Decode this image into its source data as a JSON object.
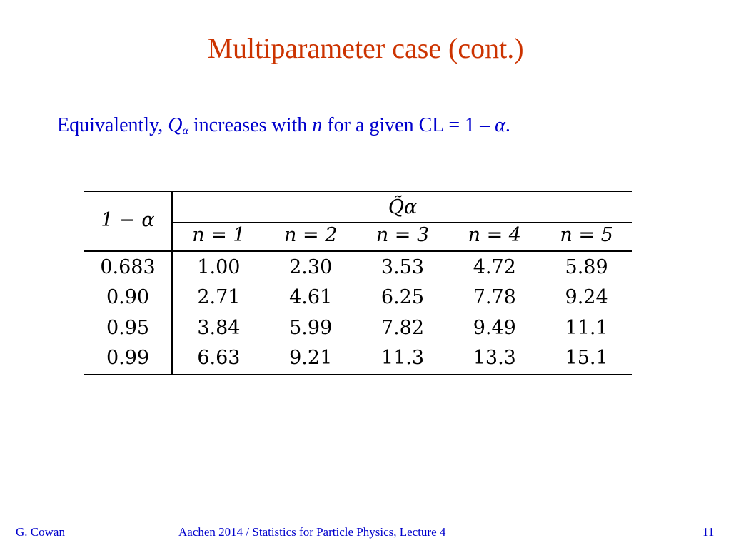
{
  "slide": {
    "title": "Multiparameter case (cont.)",
    "subtitle": {
      "part1": "Equivalently, ",
      "q_symbol": "Q",
      "q_subscript": "α",
      "part2": " increases with ",
      "n_symbol": "n",
      "part3": " for a given CL = 1 – ",
      "alpha_symbol": "α",
      "part4": "."
    }
  },
  "table": {
    "row_header": "1 − α",
    "column_group_header": "Q̃α",
    "columns": [
      "n = 1",
      "n = 2",
      "n = 3",
      "n = 4",
      "n = 5"
    ],
    "rows": [
      {
        "cl": "0.683",
        "values": [
          "1.00",
          "2.30",
          "3.53",
          "4.72",
          "5.89"
        ]
      },
      {
        "cl": "0.90",
        "values": [
          "2.71",
          "4.61",
          "6.25",
          "7.78",
          "9.24"
        ]
      },
      {
        "cl": "0.95",
        "values": [
          "3.84",
          "5.99",
          "7.82",
          "9.49",
          "11.1"
        ]
      },
      {
        "cl": "0.99",
        "values": [
          "6.63",
          "9.21",
          "11.3",
          "13.3",
          "15.1"
        ]
      }
    ]
  },
  "footer": {
    "author": "G. Cowan",
    "center": "Aachen 2014 / Statistics for Particle Physics, Lecture 4",
    "page": "11"
  },
  "colors": {
    "title": "#cc3300",
    "text": "#0000cc"
  }
}
